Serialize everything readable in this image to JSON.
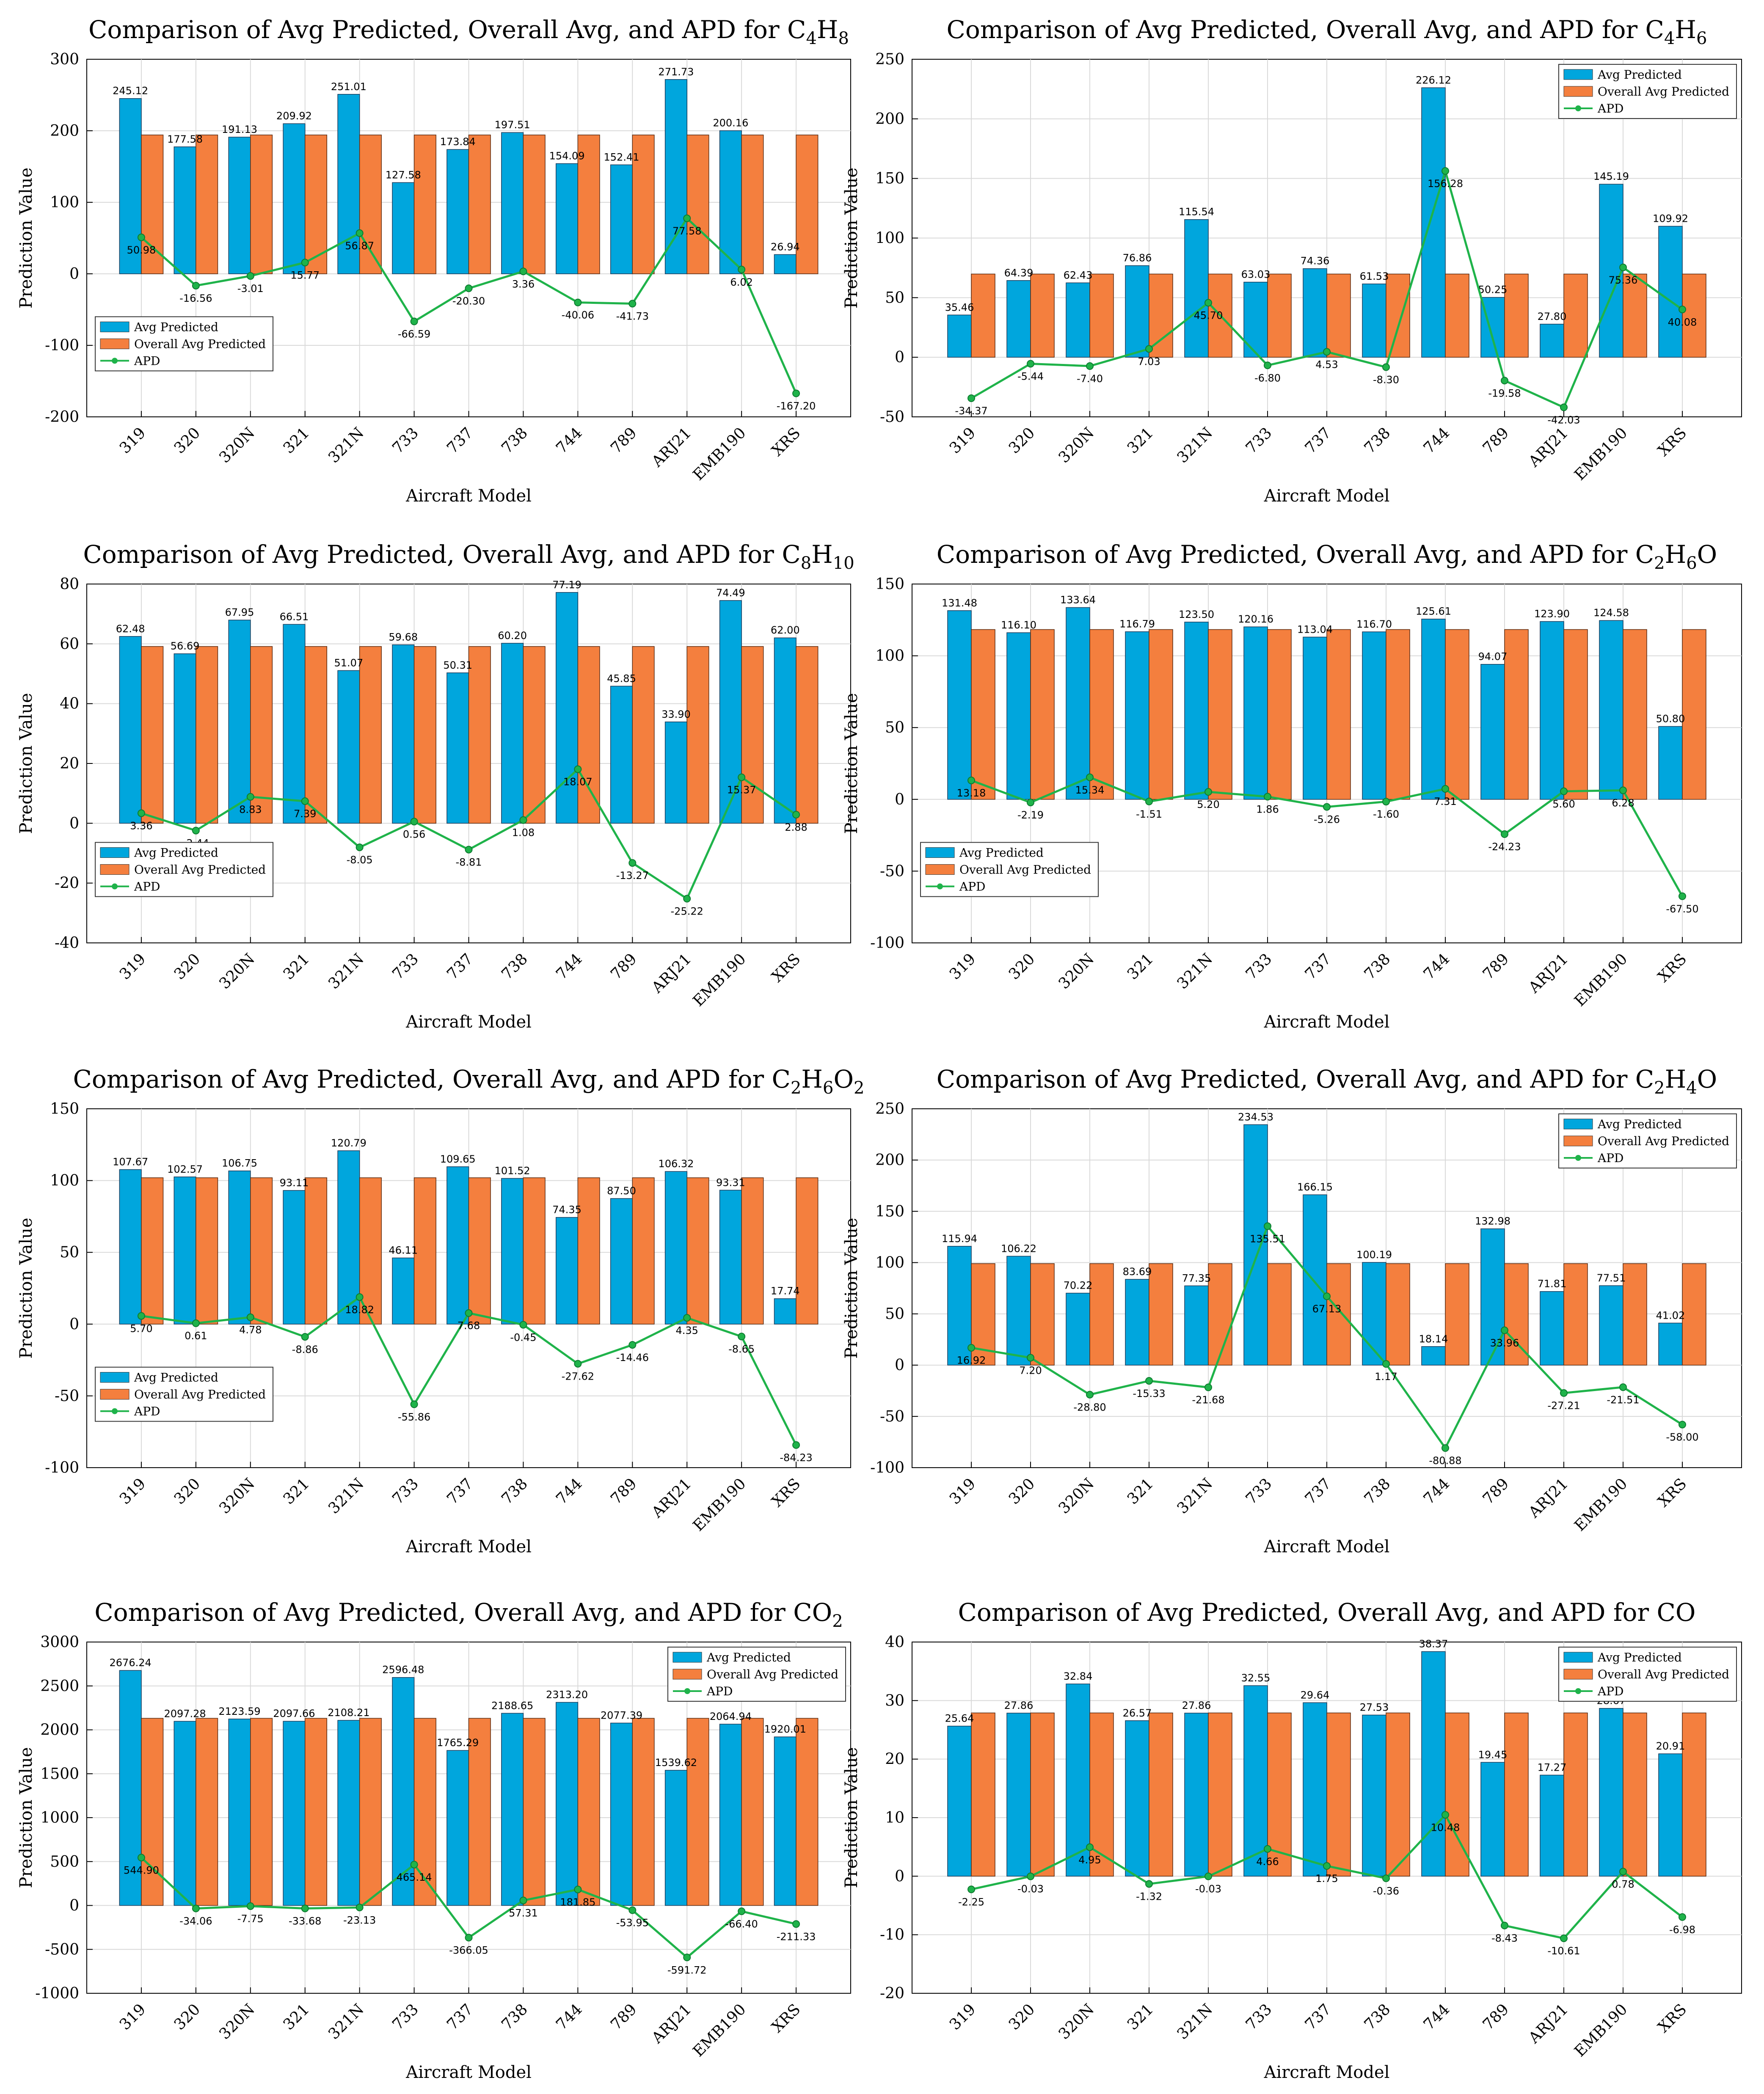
{
  "colors": {
    "avg": "#00A6DD",
    "overall": "#F47F3E",
    "apd": "#1FB34A",
    "grid": "#d9d9d9"
  },
  "chart_data": [
    {
      "type": "bar",
      "title": "Comparison of Avg Predicted, Overall Avg, and APD for ",
      "formula": [
        [
          "C",
          ""
        ],
        [
          "4",
          "sub"
        ],
        [
          "H",
          ""
        ],
        [
          "8",
          "sub"
        ]
      ],
      "xlabel": "Aircraft Model",
      "ylabel": "Prediction Value",
      "categories": [
        "319",
        "320",
        "320N",
        "321",
        "321N",
        "733",
        "737",
        "738",
        "744",
        "789",
        "ARJ21",
        "EMB190",
        "XRS"
      ],
      "ylim": [
        -200,
        300
      ],
      "yticks": [
        -200,
        -100,
        0,
        100,
        200,
        300
      ],
      "series": [
        {
          "name": "Avg Predicted",
          "values": [
            245.12,
            177.58,
            191.13,
            209.92,
            251.01,
            127.58,
            173.84,
            197.51,
            154.09,
            152.41,
            271.73,
            200.16,
            26.94
          ]
        },
        {
          "name": "Overall Avg Predicted",
          "values": [
            194.14,
            194.14,
            194.14,
            194.14,
            194.14,
            194.14,
            194.14,
            194.14,
            194.14,
            194.14,
            194.14,
            194.14,
            194.14
          ]
        },
        {
          "name": "APD",
          "values": [
            50.98,
            -16.56,
            -3.01,
            15.77,
            56.87,
            -66.59,
            -20.3,
            3.36,
            -40.06,
            -41.73,
            77.58,
            6.02,
            -167.2
          ]
        }
      ],
      "legend": "lower-left",
      "grid": true
    },
    {
      "type": "bar",
      "title": "Comparison of Avg Predicted, Overall Avg, and APD for ",
      "formula": [
        [
          "C",
          ""
        ],
        [
          "4",
          "sub"
        ],
        [
          "H",
          ""
        ],
        [
          "6",
          "sub"
        ]
      ],
      "xlabel": "Aircraft Model",
      "ylabel": "Prediction Value",
      "categories": [
        "319",
        "320",
        "320N",
        "321",
        "321N",
        "733",
        "737",
        "738",
        "744",
        "789",
        "ARJ21",
        "EMB190",
        "XRS"
      ],
      "ylim": [
        -50,
        250
      ],
      "yticks": [
        -50,
        0,
        50,
        100,
        150,
        200,
        250
      ],
      "series": [
        {
          "name": "Avg Predicted",
          "values": [
            35.46,
            64.39,
            62.43,
            76.86,
            115.54,
            63.03,
            74.36,
            61.53,
            226.12,
            50.25,
            27.8,
            145.19,
            109.92
          ]
        },
        {
          "name": "Overall Avg Predicted",
          "values": [
            69.83,
            69.83,
            69.83,
            69.83,
            69.83,
            69.83,
            69.83,
            69.83,
            69.83,
            69.83,
            69.83,
            69.83,
            69.83
          ]
        },
        {
          "name": "APD",
          "values": [
            -34.37,
            -5.44,
            -7.4,
            7.03,
            45.7,
            -6.8,
            4.53,
            -8.3,
            156.28,
            -19.58,
            -42.03,
            75.36,
            40.08
          ]
        }
      ],
      "legend": "upper-right",
      "grid": true
    },
    {
      "type": "bar",
      "title": "Comparison of Avg Predicted, Overall Avg, and APD for ",
      "formula": [
        [
          "C",
          ""
        ],
        [
          "8",
          "sub"
        ],
        [
          "H",
          ""
        ],
        [
          "10",
          "sub"
        ]
      ],
      "xlabel": "Aircraft Model",
      "ylabel": "Prediction Value",
      "categories": [
        "319",
        "320",
        "320N",
        "321",
        "321N",
        "733",
        "737",
        "738",
        "744",
        "789",
        "ARJ21",
        "EMB190",
        "XRS"
      ],
      "ylim": [
        -40,
        80
      ],
      "yticks": [
        -40,
        -20,
        0,
        20,
        40,
        60,
        80
      ],
      "series": [
        {
          "name": "Avg Predicted",
          "values": [
            62.48,
            56.69,
            67.95,
            66.51,
            51.07,
            59.68,
            50.31,
            60.2,
            77.19,
            45.85,
            33.9,
            74.49,
            62.0
          ]
        },
        {
          "name": "Overall Avg Predicted",
          "values": [
            59.12,
            59.12,
            59.12,
            59.12,
            59.12,
            59.12,
            59.12,
            59.12,
            59.12,
            59.12,
            59.12,
            59.12,
            59.12
          ]
        },
        {
          "name": "APD",
          "values": [
            3.36,
            -2.44,
            8.83,
            7.39,
            -8.05,
            0.56,
            -8.81,
            1.08,
            18.07,
            -13.27,
            -25.22,
            15.37,
            2.88
          ]
        }
      ],
      "legend": "lower-left",
      "grid": true
    },
    {
      "type": "bar",
      "title": "Comparison of Avg Predicted, Overall Avg, and APD for ",
      "formula": [
        [
          "C",
          ""
        ],
        [
          "2",
          "sub"
        ],
        [
          "H",
          ""
        ],
        [
          "6",
          "sub"
        ],
        [
          "O",
          ""
        ]
      ],
      "xlabel": "Aircraft Model",
      "ylabel": "Prediction Value",
      "categories": [
        "319",
        "320",
        "320N",
        "321",
        "321N",
        "733",
        "737",
        "738",
        "744",
        "789",
        "ARJ21",
        "EMB190",
        "XRS"
      ],
      "ylim": [
        -100,
        150
      ],
      "yticks": [
        -100,
        -50,
        0,
        50,
        100,
        150
      ],
      "series": [
        {
          "name": "Avg Predicted",
          "values": [
            131.48,
            116.1,
            133.64,
            116.79,
            123.5,
            120.16,
            113.04,
            116.7,
            125.61,
            94.07,
            123.9,
            124.58,
            50.8
          ]
        },
        {
          "name": "Overall Avg Predicted",
          "values": [
            118.3,
            118.3,
            118.3,
            118.3,
            118.3,
            118.3,
            118.3,
            118.3,
            118.3,
            118.3,
            118.3,
            118.3,
            118.3
          ]
        },
        {
          "name": "APD",
          "values": [
            13.18,
            -2.19,
            15.34,
            -1.51,
            5.2,
            1.86,
            -5.26,
            -1.6,
            7.31,
            -24.23,
            5.6,
            6.28,
            -67.5
          ]
        }
      ],
      "legend": "lower-left",
      "grid": true
    },
    {
      "type": "bar",
      "title": "Comparison of Avg Predicted, Overall Avg, and APD for ",
      "formula": [
        [
          "C",
          ""
        ],
        [
          "2",
          "sub"
        ],
        [
          "H",
          ""
        ],
        [
          "6",
          "sub"
        ],
        [
          "O",
          ""
        ],
        [
          "2",
          "sub"
        ]
      ],
      "xlabel": "Aircraft Model",
      "ylabel": "Prediction Value",
      "categories": [
        "319",
        "320",
        "320N",
        "321",
        "321N",
        "733",
        "737",
        "738",
        "744",
        "789",
        "ARJ21",
        "EMB190",
        "XRS"
      ],
      "ylim": [
        -100,
        150
      ],
      "yticks": [
        -100,
        -50,
        0,
        50,
        100,
        150
      ],
      "series": [
        {
          "name": "Avg Predicted",
          "values": [
            107.67,
            102.57,
            106.75,
            93.11,
            120.79,
            46.11,
            109.65,
            101.52,
            74.35,
            87.5,
            106.32,
            93.31,
            17.74
          ]
        },
        {
          "name": "Overall Avg Predicted",
          "values": [
            101.97,
            101.97,
            101.97,
            101.97,
            101.97,
            101.97,
            101.97,
            101.97,
            101.97,
            101.97,
            101.97,
            101.97,
            101.97
          ]
        },
        {
          "name": "APD",
          "values": [
            5.7,
            0.61,
            4.78,
            -8.86,
            18.82,
            -55.86,
            7.68,
            -0.45,
            -27.62,
            -14.46,
            4.35,
            -8.65,
            -84.23
          ]
        }
      ],
      "legend": "lower-left",
      "grid": true
    },
    {
      "type": "bar",
      "title": "Comparison of Avg Predicted, Overall Avg, and APD for ",
      "formula": [
        [
          "C",
          ""
        ],
        [
          "2",
          "sub"
        ],
        [
          "H",
          ""
        ],
        [
          "4",
          "sub"
        ],
        [
          "O",
          ""
        ]
      ],
      "xlabel": "Aircraft Model",
      "ylabel": "Prediction Value",
      "categories": [
        "319",
        "320",
        "320N",
        "321",
        "321N",
        "733",
        "737",
        "738",
        "744",
        "789",
        "ARJ21",
        "EMB190",
        "XRS"
      ],
      "ylim": [
        -100,
        250
      ],
      "yticks": [
        -100,
        -50,
        0,
        50,
        100,
        150,
        200,
        250
      ],
      "series": [
        {
          "name": "Avg Predicted",
          "values": [
            115.94,
            106.22,
            70.22,
            83.69,
            77.35,
            234.53,
            166.15,
            100.19,
            18.14,
            132.98,
            71.81,
            77.51,
            41.02
          ]
        },
        {
          "name": "Overall Avg Predicted",
          "values": [
            99.02,
            99.02,
            99.02,
            99.02,
            99.02,
            99.02,
            99.02,
            99.02,
            99.02,
            99.02,
            99.02,
            99.02,
            99.02
          ]
        },
        {
          "name": "APD",
          "values": [
            16.92,
            7.2,
            -28.8,
            -15.33,
            -21.68,
            135.51,
            67.13,
            1.17,
            -80.88,
            33.96,
            -27.21,
            -21.51,
            -58.0
          ]
        }
      ],
      "legend": "upper-right",
      "grid": true
    },
    {
      "type": "bar",
      "title": "Comparison of Avg Predicted, Overall Avg, and APD for ",
      "formula": [
        [
          "CO",
          ""
        ],
        [
          "2",
          "sub"
        ]
      ],
      "xlabel": "Aircraft Model",
      "ylabel": "Prediction Value",
      "categories": [
        "319",
        "320",
        "320N",
        "321",
        "321N",
        "733",
        "737",
        "738",
        "744",
        "789",
        "ARJ21",
        "EMB190",
        "XRS"
      ],
      "ylim": [
        -1000,
        3000
      ],
      "yticks": [
        -1000,
        -500,
        0,
        500,
        1000,
        1500,
        2000,
        2500,
        3000
      ],
      "series": [
        {
          "name": "Avg Predicted",
          "values": [
            2676.24,
            2097.28,
            2123.59,
            2097.66,
            2108.21,
            2596.48,
            1765.29,
            2188.65,
            2313.2,
            2077.39,
            1539.62,
            2064.94,
            1920.01
          ]
        },
        {
          "name": "Overall Avg Predicted",
          "values": [
            2131.34,
            2131.34,
            2131.34,
            2131.34,
            2131.34,
            2131.34,
            2131.34,
            2131.34,
            2131.34,
            2131.34,
            2131.34,
            2131.34,
            2131.34
          ]
        },
        {
          "name": "APD",
          "values": [
            544.9,
            -34.06,
            -7.75,
            -33.68,
            -23.13,
            465.14,
            -366.05,
            57.31,
            181.85,
            -53.95,
            -591.72,
            -66.4,
            -211.33
          ]
        }
      ],
      "legend": "upper-right",
      "grid": true
    },
    {
      "type": "bar",
      "title": "Comparison of Avg Predicted, Overall Avg, and APD for ",
      "formula": [
        [
          "CO",
          ""
        ]
      ],
      "xlabel": "Aircraft Model",
      "ylabel": "Prediction Value",
      "categories": [
        "319",
        "320",
        "320N",
        "321",
        "321N",
        "733",
        "737",
        "738",
        "744",
        "789",
        "ARJ21",
        "EMB190",
        "XRS"
      ],
      "ylim": [
        -20,
        40
      ],
      "yticks": [
        -20,
        -10,
        0,
        10,
        20,
        30,
        40
      ],
      "series": [
        {
          "name": "Avg Predicted",
          "values": [
            25.64,
            27.86,
            32.84,
            26.57,
            27.86,
            32.55,
            29.64,
            27.53,
            38.37,
            19.45,
            17.27,
            28.67,
            20.91
          ]
        },
        {
          "name": "Overall Avg Predicted",
          "values": [
            27.89,
            27.89,
            27.89,
            27.89,
            27.89,
            27.89,
            27.89,
            27.89,
            27.89,
            27.89,
            27.89,
            27.89,
            27.89
          ]
        },
        {
          "name": "APD",
          "values": [
            -2.25,
            -0.03,
            4.95,
            -1.32,
            -0.03,
            4.66,
            1.75,
            -0.36,
            10.48,
            -8.43,
            -10.61,
            0.78,
            -6.98
          ]
        }
      ],
      "legend": "upper-right",
      "grid": true
    }
  ]
}
